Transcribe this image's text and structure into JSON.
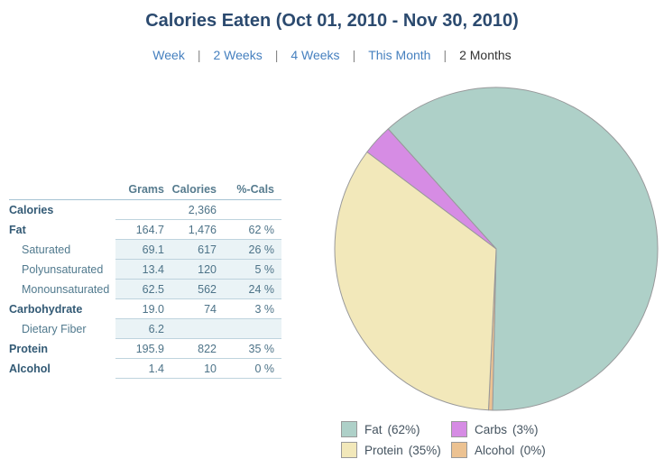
{
  "title": "Calories Eaten (Oct 01, 2010 - Nov 30, 2010)",
  "nav": {
    "separator": "|",
    "items": [
      {
        "label": "Week",
        "link": true
      },
      {
        "label": "2 Weeks",
        "link": true
      },
      {
        "label": "4 Weeks",
        "link": true
      },
      {
        "label": "This Month",
        "link": true
      },
      {
        "label": "2 Months",
        "link": false
      }
    ]
  },
  "table": {
    "headers": [
      "",
      "Grams",
      "Calories",
      "%-Cals"
    ],
    "rows": [
      {
        "label": "Calories",
        "grams": "",
        "calories": "2,366",
        "pcals": "",
        "bold": true,
        "indent": false,
        "shaded": false
      },
      {
        "label": "Fat",
        "grams": "164.7",
        "calories": "1,476",
        "pcals": "62 %",
        "bold": true,
        "indent": false,
        "shaded": false
      },
      {
        "label": "Saturated",
        "grams": "69.1",
        "calories": "617",
        "pcals": "26 %",
        "bold": false,
        "indent": true,
        "shaded": true
      },
      {
        "label": "Polyunsaturated",
        "grams": "13.4",
        "calories": "120",
        "pcals": "5 %",
        "bold": false,
        "indent": true,
        "shaded": true
      },
      {
        "label": "Monounsaturated",
        "grams": "62.5",
        "calories": "562",
        "pcals": "24 %",
        "bold": false,
        "indent": true,
        "shaded": true
      },
      {
        "label": "Carbohydrate",
        "grams": "19.0",
        "calories": "74",
        "pcals": "3 %",
        "bold": true,
        "indent": false,
        "shaded": false
      },
      {
        "label": "Dietary Fiber",
        "grams": "6.2",
        "calories": "",
        "pcals": "",
        "bold": false,
        "indent": true,
        "shaded": true
      },
      {
        "label": "Protein",
        "grams": "195.9",
        "calories": "822",
        "pcals": "35 %",
        "bold": true,
        "indent": false,
        "shaded": false
      },
      {
        "label": "Alcohol",
        "grams": "1.4",
        "calories": "10",
        "pcals": "0 %",
        "bold": true,
        "indent": false,
        "shaded": false
      }
    ]
  },
  "chart_data": {
    "type": "pie",
    "title": "Calories Eaten (Oct 01, 2010 - Nov 30, 2010)",
    "start_angle_deg": 318,
    "stroke_color": "#98999b",
    "slices": [
      {
        "name": "Fat",
        "pct": 62.4,
        "color": "#aed0c8"
      },
      {
        "name": "Alcohol",
        "pct": 0.4,
        "color": "#ecc292"
      },
      {
        "name": "Protein",
        "pct": 34.7,
        "color": "#f2e8ba"
      },
      {
        "name": "Carbs",
        "pct": 3.1,
        "color": "#d68ce4"
      }
    ],
    "legend": [
      {
        "name": "Fat",
        "pct": "(62%)",
        "color": "#aed0c8"
      },
      {
        "name": "Carbs",
        "pct": "(3%)",
        "color": "#d68ce4"
      },
      {
        "name": "Protein",
        "pct": "(35%)",
        "color": "#f2e8ba"
      },
      {
        "name": "Alcohol",
        "pct": "(0%)",
        "color": "#ecc292"
      }
    ]
  }
}
